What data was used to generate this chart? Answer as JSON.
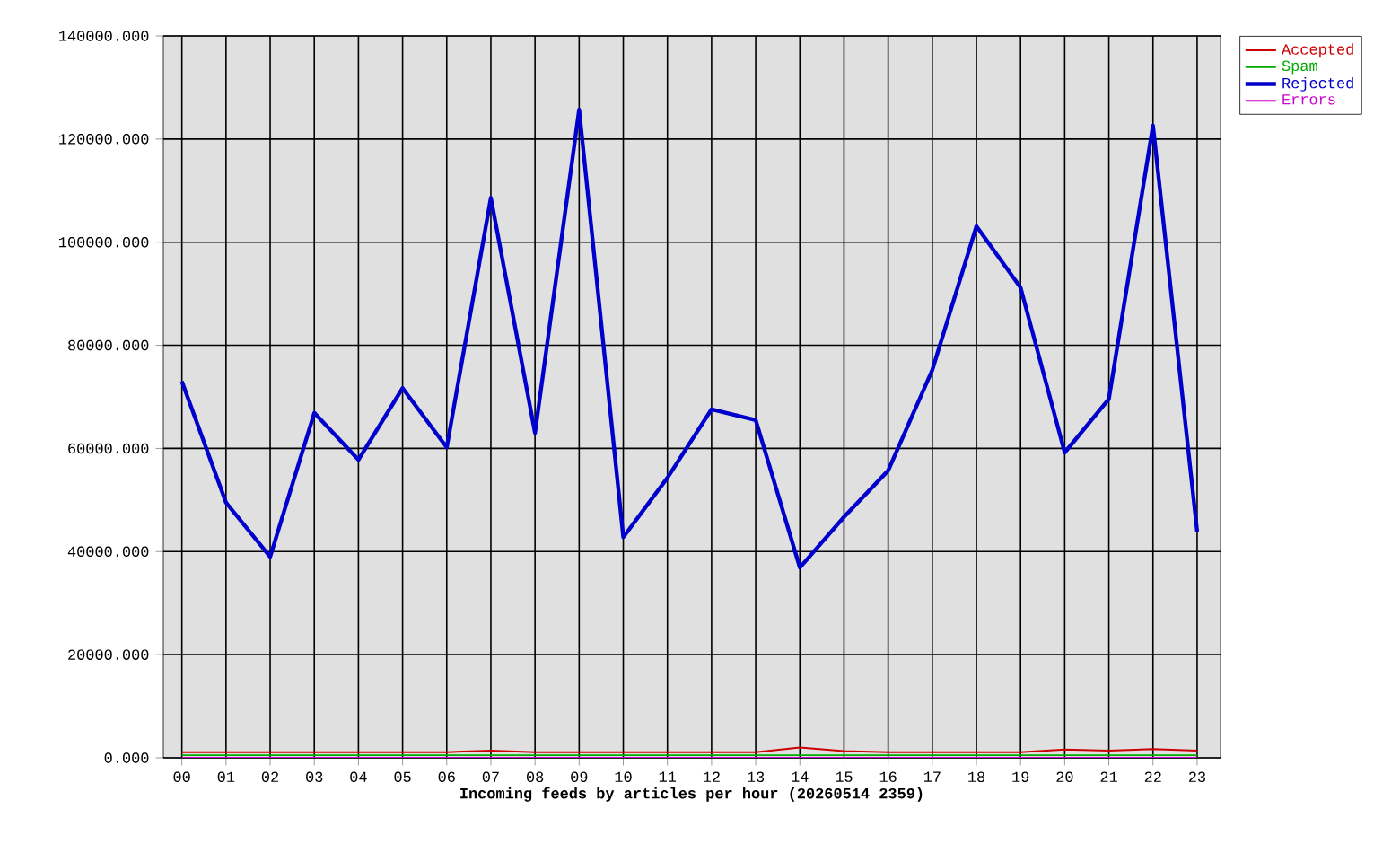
{
  "chart_data": {
    "type": "line",
    "xlabel": "Incoming feeds by articles per hour (20260514 2359)",
    "categories": [
      "00",
      "01",
      "02",
      "03",
      "04",
      "05",
      "06",
      "07",
      "08",
      "09",
      "10",
      "11",
      "12",
      "13",
      "14",
      "15",
      "16",
      "17",
      "18",
      "19",
      "20",
      "21",
      "22",
      "23"
    ],
    "series": [
      {
        "name": "Accepted",
        "color": "#cc0000",
        "values": [
          1100,
          1100,
          1100,
          1100,
          1100,
          1100,
          1100,
          1400,
          1100,
          1100,
          1100,
          1100,
          1100,
          1100,
          2000,
          1300,
          1100,
          1100,
          1100,
          1100,
          1600,
          1400,
          1700,
          1400
        ]
      },
      {
        "name": "Spam",
        "color": "#00aa00",
        "values": [
          500,
          500,
          500,
          500,
          500,
          500,
          500,
          500,
          500,
          500,
          500,
          500,
          500,
          500,
          500,
          500,
          500,
          500,
          500,
          500,
          500,
          500,
          500,
          500
        ]
      },
      {
        "name": "Rejected",
        "color": "#0000cc",
        "values": [
          73000,
          49500,
          39000,
          66900,
          57800,
          71700,
          60200,
          108600,
          63000,
          125700,
          42800,
          54300,
          67600,
          65500,
          36900,
          46700,
          55700,
          75200,
          103100,
          91200,
          59200,
          69600,
          122600,
          43900
        ]
      },
      {
        "name": "Errors",
        "color": "#cc00cc",
        "values": [
          0,
          0,
          0,
          0,
          0,
          0,
          0,
          0,
          0,
          0,
          0,
          0,
          0,
          0,
          0,
          0,
          0,
          0,
          0,
          0,
          0,
          0,
          0,
          0
        ]
      }
    ],
    "ylim": [
      0,
      140000
    ],
    "yticks": [
      {
        "value": 0,
        "label": "0.000"
      },
      {
        "value": 20000,
        "label": "20000.000"
      },
      {
        "value": 40000,
        "label": "40000.000"
      },
      {
        "value": 60000,
        "label": "60000.000"
      },
      {
        "value": 80000,
        "label": "80000.000"
      },
      {
        "value": 100000,
        "label": "100000.000"
      },
      {
        "value": 120000,
        "label": "120000.000"
      },
      {
        "value": 140000,
        "label": "140000.000"
      }
    ],
    "grid": true,
    "legend": "top right"
  }
}
